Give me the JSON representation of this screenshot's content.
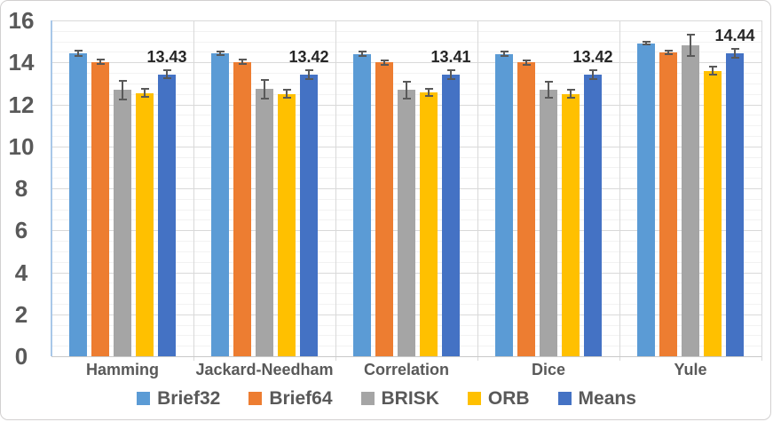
{
  "chart_data": {
    "type": "bar",
    "title": "",
    "xlabel": "",
    "ylabel": "",
    "categories": [
      "Hamming",
      "Jackard-Needham",
      "Correlation",
      "Dice",
      "Yule"
    ],
    "series": [
      {
        "name": "Brief32",
        "color": "#5B9BD5",
        "values": [
          14.42,
          14.43,
          14.4,
          14.41,
          14.92
        ],
        "errors": [
          0.12,
          0.1,
          0.1,
          0.1,
          0.08
        ]
      },
      {
        "name": "Brief64",
        "color": "#ED7D31",
        "values": [
          14.03,
          14.02,
          14.0,
          14.0,
          14.48
        ],
        "errors": [
          0.12,
          0.1,
          0.1,
          0.1,
          0.1
        ]
      },
      {
        "name": "BRISK",
        "color": "#A5A5A5",
        "values": [
          12.68,
          12.72,
          12.68,
          12.7,
          14.82
        ],
        "errors": [
          0.45,
          0.45,
          0.4,
          0.4,
          0.5
        ]
      },
      {
        "name": "ORB",
        "color": "#FFC000",
        "values": [
          12.55,
          12.5,
          12.57,
          12.5,
          13.6
        ],
        "errors": [
          0.2,
          0.2,
          0.18,
          0.18,
          0.2
        ]
      },
      {
        "name": "Means",
        "color": "#4472C4",
        "values": [
          13.43,
          13.42,
          13.41,
          13.42,
          14.44
        ],
        "errors": [
          0.2,
          0.2,
          0.2,
          0.22,
          0.22
        ],
        "data_labels": [
          "13.43",
          "13.42",
          "13.41",
          "13.42",
          "14.44"
        ]
      }
    ],
    "ylim": [
      0,
      16
    ],
    "y_major_step": 2,
    "y_minor_step": 0.5,
    "y_tick_labels": [
      "0",
      "2",
      "4",
      "6",
      "8",
      "10",
      "12",
      "14",
      "16"
    ],
    "grid": true,
    "legend_position": "bottom",
    "error_bars": true,
    "colors": {
      "axis_text": "#595959",
      "data_label_text": "#262626",
      "major_grid": "#D9D9D9",
      "minor_grid": "#F2F2F2",
      "y_axis_line": "#A8C7E8",
      "error_bar": "#595959"
    }
  }
}
